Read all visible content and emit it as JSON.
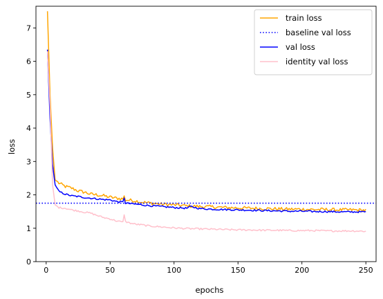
{
  "chart_data": {
    "type": "line",
    "title": "",
    "xlabel": "epochs",
    "ylabel": "loss",
    "xlim": [
      -8,
      258
    ],
    "ylim": [
      0,
      7.65
    ],
    "xticks": [
      0,
      50,
      100,
      150,
      200,
      250
    ],
    "yticks": [
      0,
      1,
      2,
      3,
      4,
      5,
      6,
      7
    ],
    "grid": false,
    "legend": {
      "placement": "top-right"
    },
    "series": [
      {
        "name": "train loss",
        "color": "#ffa500",
        "style": "solid",
        "x": [
          1,
          3,
          5,
          7,
          10,
          15,
          20,
          25,
          30,
          35,
          40,
          45,
          50,
          55,
          60,
          61,
          62,
          65,
          70,
          75,
          80,
          90,
          100,
          110,
          120,
          130,
          140,
          150,
          160,
          170,
          180,
          190,
          200,
          210,
          220,
          230,
          240,
          250
        ],
        "y": [
          7.5,
          5.0,
          3.4,
          2.45,
          2.35,
          2.25,
          2.2,
          2.12,
          2.08,
          2.02,
          2.0,
          1.97,
          1.93,
          1.9,
          1.88,
          1.95,
          1.85,
          1.84,
          1.82,
          1.78,
          1.76,
          1.72,
          1.7,
          1.67,
          1.65,
          1.64,
          1.62,
          1.61,
          1.6,
          1.59,
          1.58,
          1.57,
          1.57,
          1.56,
          1.56,
          1.55,
          1.55,
          1.54
        ]
      },
      {
        "name": "baseline val loss",
        "color": "#0000ff",
        "style": "dotted",
        "y_constant": 1.75
      },
      {
        "name": "val loss",
        "color": "#0000ff",
        "style": "solid",
        "x": [
          1,
          3,
          5,
          7,
          10,
          15,
          20,
          25,
          30,
          35,
          40,
          45,
          50,
          55,
          60,
          61,
          62,
          65,
          70,
          75,
          80,
          90,
          100,
          110,
          113,
          120,
          130,
          140,
          150,
          160,
          170,
          180,
          190,
          200,
          210,
          220,
          230,
          240,
          250
        ],
        "y": [
          6.35,
          4.3,
          2.9,
          2.3,
          2.1,
          2.02,
          1.97,
          1.95,
          1.92,
          1.9,
          1.88,
          1.86,
          1.85,
          1.8,
          1.78,
          1.92,
          1.75,
          1.74,
          1.72,
          1.7,
          1.68,
          1.65,
          1.62,
          1.6,
          1.65,
          1.59,
          1.57,
          1.56,
          1.55,
          1.54,
          1.53,
          1.52,
          1.51,
          1.51,
          1.5,
          1.5,
          1.49,
          1.49,
          1.49
        ]
      },
      {
        "name": "identity val loss",
        "color": "#ffc0cb",
        "style": "solid",
        "x": [
          1,
          3,
          5,
          7,
          10,
          15,
          20,
          25,
          30,
          35,
          40,
          45,
          50,
          55,
          60,
          61,
          62,
          65,
          70,
          75,
          80,
          90,
          100,
          110,
          120,
          130,
          140,
          150,
          160,
          170,
          180,
          190,
          200,
          210,
          220,
          230,
          240,
          250
        ],
        "y": [
          6.3,
          4.7,
          2.3,
          1.7,
          1.62,
          1.6,
          1.55,
          1.52,
          1.48,
          1.45,
          1.38,
          1.32,
          1.28,
          1.22,
          1.18,
          1.42,
          1.2,
          1.16,
          1.12,
          1.1,
          1.07,
          1.04,
          1.01,
          0.99,
          0.98,
          0.97,
          0.96,
          0.95,
          0.95,
          0.94,
          0.94,
          0.93,
          0.93,
          0.93,
          0.92,
          0.92,
          0.92,
          0.91
        ]
      }
    ]
  }
}
